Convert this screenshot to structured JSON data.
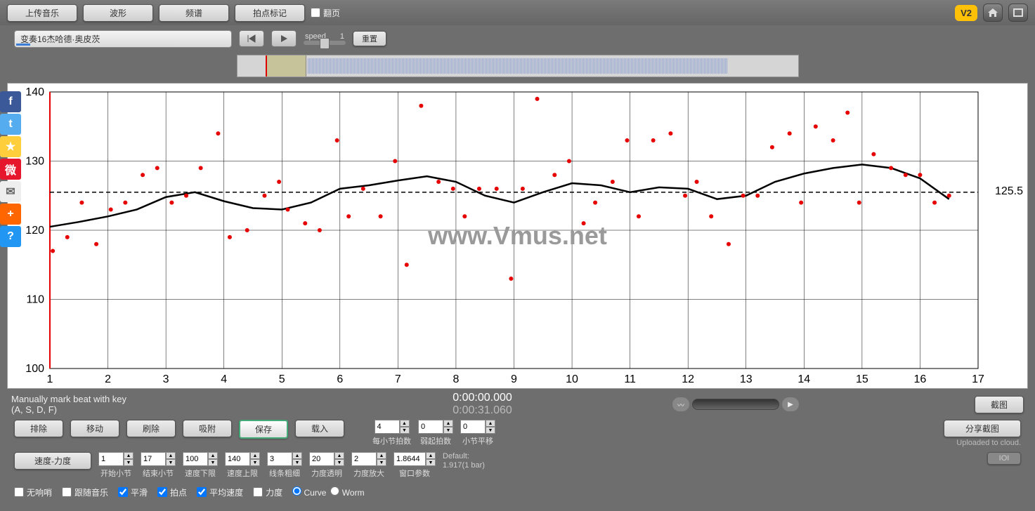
{
  "toolbar": {
    "upload": "上传音乐",
    "waveform": "波形",
    "spectrum": "频谱",
    "beatmark": "拍点标记",
    "flip": "翻页",
    "v2": "V2"
  },
  "track": {
    "title": "变奏16杰哈德·奥皮茨",
    "speed_label": "speed",
    "speed_value": "1",
    "reset": "重置"
  },
  "chart": {
    "type": "scatter-with-smoothed-line",
    "xlim": [
      1,
      17
    ],
    "ylim": [
      100,
      140
    ],
    "xticks": [
      1,
      2,
      3,
      4,
      5,
      6,
      7,
      8,
      9,
      10,
      11,
      12,
      13,
      14,
      15,
      16,
      17
    ],
    "yticks": [
      100,
      110,
      120,
      130,
      140
    ],
    "mean_line": 125.5,
    "mean_label": "125.5",
    "grid_color": "#000000",
    "grid_width": 0.5,
    "mean_dash": "6,4",
    "point_color": "#e60000",
    "point_radius": 3,
    "line_color": "#000000",
    "line_width": 2.5,
    "background": "#ffffff",
    "tick_fontsize": 16,
    "watermark": "www.Vmus.net",
    "points": [
      [
        1.05,
        117
      ],
      [
        1.3,
        119
      ],
      [
        1.55,
        124
      ],
      [
        1.8,
        118
      ],
      [
        2.05,
        123
      ],
      [
        2.3,
        124
      ],
      [
        2.6,
        128
      ],
      [
        2.85,
        129
      ],
      [
        3.1,
        124
      ],
      [
        3.35,
        125
      ],
      [
        3.6,
        129
      ],
      [
        3.9,
        134
      ],
      [
        4.1,
        119
      ],
      [
        4.4,
        120
      ],
      [
        4.7,
        125
      ],
      [
        4.95,
        127
      ],
      [
        5.1,
        123
      ],
      [
        5.4,
        121
      ],
      [
        5.65,
        120
      ],
      [
        5.95,
        133
      ],
      [
        6.15,
        122
      ],
      [
        6.4,
        126
      ],
      [
        6.7,
        122
      ],
      [
        6.95,
        130
      ],
      [
        7.15,
        115
      ],
      [
        7.4,
        138
      ],
      [
        7.7,
        127
      ],
      [
        7.95,
        126
      ],
      [
        8.15,
        122
      ],
      [
        8.4,
        126
      ],
      [
        8.7,
        126
      ],
      [
        8.95,
        113
      ],
      [
        9.15,
        126
      ],
      [
        9.4,
        139
      ],
      [
        9.7,
        128
      ],
      [
        9.95,
        130
      ],
      [
        10.2,
        121
      ],
      [
        10.4,
        124
      ],
      [
        10.7,
        127
      ],
      [
        10.95,
        133
      ],
      [
        11.15,
        122
      ],
      [
        11.4,
        133
      ],
      [
        11.7,
        134
      ],
      [
        11.95,
        125
      ],
      [
        12.15,
        127
      ],
      [
        12.4,
        122
      ],
      [
        12.7,
        118
      ],
      [
        12.95,
        125
      ],
      [
        13.2,
        125
      ],
      [
        13.45,
        132
      ],
      [
        13.75,
        134
      ],
      [
        13.95,
        124
      ],
      [
        14.2,
        135
      ],
      [
        14.5,
        133
      ],
      [
        14.75,
        137
      ],
      [
        14.95,
        124
      ],
      [
        15.2,
        131
      ],
      [
        15.5,
        129
      ],
      [
        15.75,
        128
      ],
      [
        16.0,
        128
      ],
      [
        16.25,
        124
      ],
      [
        16.5,
        125
      ]
    ],
    "smooth_line": [
      [
        1,
        120.5
      ],
      [
        1.5,
        121.2
      ],
      [
        2,
        122
      ],
      [
        2.5,
        123
      ],
      [
        3,
        124.8
      ],
      [
        3.5,
        125.5
      ],
      [
        4,
        124.2
      ],
      [
        4.5,
        123.2
      ],
      [
        5,
        123
      ],
      [
        5.5,
        124
      ],
      [
        6,
        126
      ],
      [
        6.5,
        126.5
      ],
      [
        7,
        127.2
      ],
      [
        7.5,
        127.8
      ],
      [
        8,
        127
      ],
      [
        8.5,
        125
      ],
      [
        9,
        124
      ],
      [
        9.5,
        125.5
      ],
      [
        10,
        126.8
      ],
      [
        10.5,
        126.5
      ],
      [
        11,
        125.5
      ],
      [
        11.5,
        126.2
      ],
      [
        12,
        126
      ],
      [
        12.5,
        124.5
      ],
      [
        13,
        125
      ],
      [
        13.5,
        127
      ],
      [
        14,
        128.2
      ],
      [
        14.5,
        129
      ],
      [
        15,
        129.5
      ],
      [
        15.5,
        129
      ],
      [
        16,
        127.5
      ],
      [
        16.5,
        124.5
      ]
    ]
  },
  "status": {
    "hint_line1": "Manually mark beat with key",
    "hint_line2": "(A, S, D, F)",
    "time1": "0:00:00.000",
    "time2": "0:00:31.060",
    "screenshot": "截图"
  },
  "edit_buttons": {
    "delete": "排除",
    "move": "移动",
    "brush": "刷除",
    "snap": "吸附",
    "save": "保存",
    "load": "载入"
  },
  "params1": {
    "beats_per_bar": {
      "value": "4",
      "label": "每小节拍数"
    },
    "weak_beats": {
      "value": "0",
      "label": "弱起拍数"
    },
    "bar_offset": {
      "value": "0",
      "label": "小节平移"
    }
  },
  "share": {
    "button": "分享截图",
    "uploaded": "Uploaded to cloud.",
    "ioi": "IOI"
  },
  "params2": {
    "speed_dynamics": "速度-力度",
    "start_bar": {
      "value": "1",
      "label": "开始小节"
    },
    "end_bar": {
      "value": "17",
      "label": "结束小节"
    },
    "speed_min": {
      "value": "100",
      "label": "速度下限"
    },
    "speed_max": {
      "value": "140",
      "label": "速度上限"
    },
    "line_thick": {
      "value": "3",
      "label": "线条粗细"
    },
    "dyn_transp": {
      "value": "20",
      "label": "力度透明"
    },
    "dyn_scale": {
      "value": "2",
      "label": "力度放大"
    },
    "window": {
      "value": "1.8644",
      "label": "窗口参数"
    },
    "default_label": "Default:",
    "default_value": "1.917(1 bar)"
  },
  "checkboxes": {
    "metronome": "无响哨",
    "follow": "跟随音乐",
    "smooth": "平滑",
    "beats": "拍点",
    "avg_speed": "平均速度",
    "dynamics": "力度",
    "curve": "Curve",
    "worm": "Worm"
  },
  "social": [
    {
      "name": "facebook",
      "bg": "#3b5998",
      "glyph": "f"
    },
    {
      "name": "twitter",
      "bg": "#55acee",
      "glyph": "t"
    },
    {
      "name": "qzone",
      "bg": "#ffce3d",
      "glyph": "★"
    },
    {
      "name": "weibo",
      "bg": "#e6162d",
      "glyph": "微"
    },
    {
      "name": "mail",
      "bg": "#eeeeee",
      "glyph": "✉"
    },
    {
      "name": "add",
      "bg": "#ff6600",
      "glyph": "+"
    },
    {
      "name": "help",
      "bg": "#2196f3",
      "glyph": "?"
    }
  ]
}
